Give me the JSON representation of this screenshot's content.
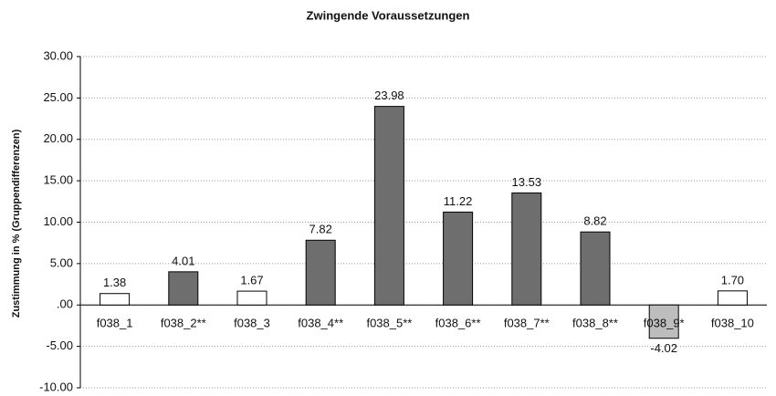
{
  "chart_data": {
    "type": "bar",
    "title": "Zwingende Voraussetzungen",
    "y_label": "Zustimmung in % (Gruppendifferenzen)",
    "categories": [
      "f038_1",
      "f038_2**",
      "f038_3",
      "f038_4**",
      "f038_5**",
      "f038_6**",
      "f038_7**",
      "f038_8**",
      "f038_9*",
      "f038_10"
    ],
    "values": [
      1.38,
      4.01,
      1.67,
      7.82,
      23.98,
      11.22,
      13.53,
      8.82,
      -4.02,
      1.7
    ],
    "value_labels": [
      "1.38",
      "4.01",
      "1.67",
      "7.82",
      "23.98",
      "11.22",
      "13.53",
      "8.82",
      "-4.02",
      "1.70"
    ],
    "colors": [
      "#ffffff",
      "#6e6e6e",
      "#ffffff",
      "#6e6e6e",
      "#6e6e6e",
      "#6e6e6e",
      "#6e6e6e",
      "#6e6e6e",
      "#bdbdbd",
      "#ffffff"
    ],
    "ylim": [
      -10,
      30
    ],
    "yticks": [
      {
        "value": -10,
        "label": "-10.00"
      },
      {
        "value": -5,
        "label": "-5.00"
      },
      {
        "value": 0,
        "label": ".00"
      },
      {
        "value": 5,
        "label": "5.00"
      },
      {
        "value": 10,
        "label": "10.00"
      },
      {
        "value": 15,
        "label": "15.00"
      },
      {
        "value": 20,
        "label": "20.00"
      },
      {
        "value": 25,
        "label": "25.00"
      },
      {
        "value": 30,
        "label": "30.00"
      }
    ],
    "grid": true
  }
}
